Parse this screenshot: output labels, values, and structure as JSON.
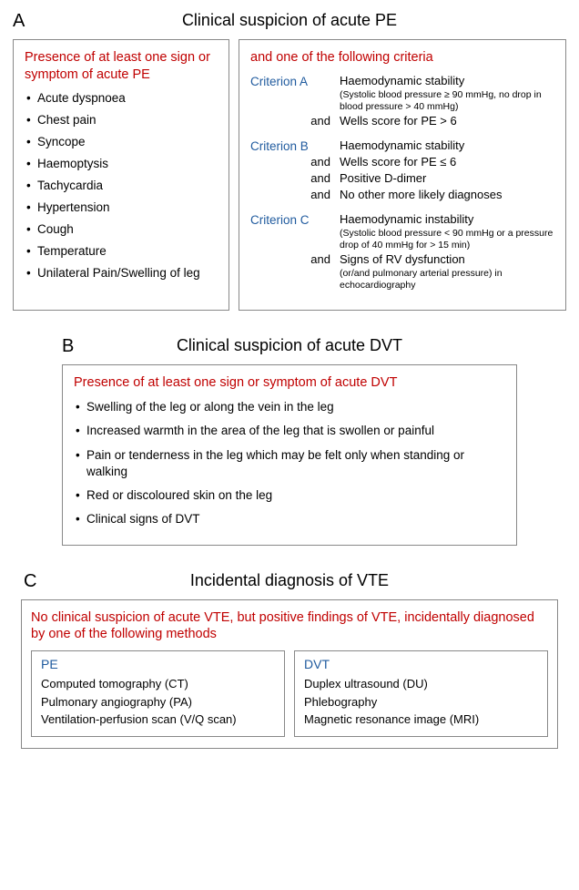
{
  "colors": {
    "red": "#c00000",
    "blue": "#1f5a9e",
    "border": "#888888",
    "text": "#000000",
    "background": "#ffffff"
  },
  "typography": {
    "family": "Arial, Helvetica, sans-serif",
    "section_label_pt": 20,
    "section_title_pt": 18,
    "body_pt": 13.5,
    "sub_pt": 10.5
  },
  "sectionA": {
    "label": "A",
    "title": "Clinical suspicion of acute PE",
    "left": {
      "heading": "Presence of at least one sign or symptom of acute PE",
      "items": [
        "Acute dyspnoea",
        "Chest pain",
        "Syncope",
        "Haemoptysis",
        "Tachycardia",
        "Hypertension",
        "Cough",
        "Temperature",
        "Unilateral Pain/Swelling of leg"
      ]
    },
    "right": {
      "and": "and",
      "heading_rest": " one of the following criteria",
      "and_word": "and",
      "criteria": [
        {
          "label": "Criterion A",
          "lines": [
            {
              "main": "Haemodynamic stability",
              "sub": "(Systolic blood pressure ≥  90 mmHg, no drop in blood pressure > 40 mmHg)"
            },
            {
              "and": true,
              "main": "Wells score for PE > 6"
            }
          ]
        },
        {
          "label": "Criterion B",
          "lines": [
            {
              "main": "Haemodynamic stability"
            },
            {
              "and": true,
              "main": "Wells score for PE ≤ 6"
            },
            {
              "and": true,
              "main": "Positive D-dimer"
            },
            {
              "and": true,
              "main": "No other more likely diagnoses"
            }
          ]
        },
        {
          "label": "Criterion C",
          "lines": [
            {
              "main": "Haemodynamic instability",
              "sub": "(Systolic blood pressure < 90 mmHg or a pressure drop of 40 mmHg for > 15 min)"
            },
            {
              "and": true,
              "main": "Signs of RV dysfunction",
              "sub": "(or/and pulmonary arterial pressure) in echocardiography"
            }
          ]
        }
      ]
    }
  },
  "sectionB": {
    "label": "B",
    "title": "Clinical suspicion of acute DVT",
    "heading": "Presence of at least one sign or symptom of acute DVT",
    "items": [
      "Swelling of the leg or along the vein in the leg",
      "Increased warmth in the area of the leg that is swollen or painful",
      "Pain or tenderness in the leg which may be felt only when standing or walking",
      "Red or discoloured skin on the leg",
      "Clinical signs of DVT"
    ]
  },
  "sectionC": {
    "label": "C",
    "title": "Incidental diagnosis of VTE",
    "heading": "No clinical suspicion of acute VTE, but positive findings of VTE, incidentally diagnosed by one of the following methods",
    "pe": {
      "label": "PE",
      "methods": [
        "Computed tomography (CT)",
        "Pulmonary angiography (PA)",
        "Ventilation-perfusion scan (V/Q scan)"
      ]
    },
    "dvt": {
      "label": "DVT",
      "methods": [
        "Duplex ultrasound (DU)",
        "Phlebography",
        "Magnetic resonance image (MRI)"
      ]
    }
  }
}
